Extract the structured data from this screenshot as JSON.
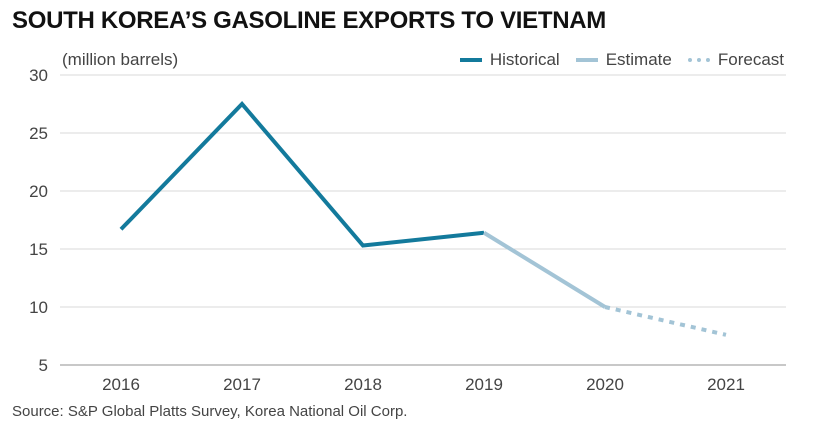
{
  "title": "SOUTH KOREA’S GASOLINE EXPORTS TO VIETNAM",
  "unit_label": "(million barrels)",
  "source": "Source: S&P Global Platts Survey, Korea National Oil Corp.",
  "colors": {
    "historical": "#137a9c",
    "estimate": "#a3c4d6",
    "forecast": "#a3c4d6",
    "grid": "#d9d9d9",
    "axis": "#b5b5b5"
  },
  "chart_data": {
    "type": "line",
    "title": "SOUTH KOREA’S GASOLINE EXPORTS TO VIETNAM",
    "xlabel": "",
    "ylabel": "(million barrels)",
    "categories": [
      "2016",
      "2017",
      "2018",
      "2019",
      "2020",
      "2021"
    ],
    "ylim": [
      5,
      30
    ],
    "yticks": [
      5,
      10,
      15,
      20,
      25,
      30
    ],
    "grid": true,
    "legend_position": "top-right",
    "series": [
      {
        "name": "Historical",
        "style": "solid",
        "points": [
          [
            "2016",
            16.7
          ],
          [
            "2017",
            27.5
          ],
          [
            "2018",
            15.3
          ],
          [
            "2019",
            16.4
          ]
        ]
      },
      {
        "name": "Estimate",
        "style": "solid",
        "points": [
          [
            "2019",
            16.4
          ],
          [
            "2020",
            10.0
          ]
        ]
      },
      {
        "name": "Forecast",
        "style": "dotted",
        "points": [
          [
            "2020",
            10.0
          ],
          [
            "2021",
            7.6
          ]
        ]
      }
    ]
  }
}
